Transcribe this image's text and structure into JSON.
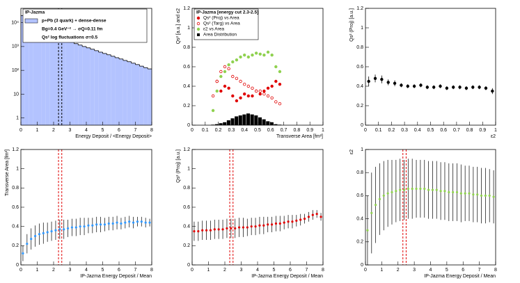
{
  "chart_data": [
    {
      "type": "histogram",
      "log_y": true,
      "xlabel": "Energy Deposit / <Energy Deposit>",
      "legend_title": "IP-Jazma",
      "label": "p+Pb (3 quark) + dense-dense",
      "color": "#b3c3ff",
      "annotations": [
        "Bg=0.4 GeV⁻² → σQ=0.11 fm",
        "Qs² log fluctuations σ=0.5"
      ],
      "bins": [
        0,
        0.25,
        0.5,
        0.75,
        1,
        1.25,
        1.5,
        1.75,
        2,
        2.25,
        2.5,
        2.75,
        3,
        3.25,
        3.5,
        3.75,
        4,
        4.25,
        4.5,
        4.75,
        5,
        5.25,
        5.5,
        5.75,
        6,
        6.25,
        6.5,
        6.75,
        7,
        7.25,
        7.5,
        7.75,
        8
      ],
      "values": [
        20000,
        12000,
        7000,
        5000,
        4470,
        3900,
        3400,
        2970,
        2600,
        2270,
        1980,
        1730,
        1510,
        1320,
        1150,
        1000,
        880,
        770,
        670,
        580,
        510,
        450,
        390,
        340,
        300,
        260,
        230,
        200,
        175,
        150,
        130,
        115
      ],
      "xlim": [
        0,
        8
      ],
      "xticks": [
        0,
        1,
        2,
        3,
        4,
        5,
        6,
        7,
        8
      ],
      "ylim": [
        0.5,
        40000
      ],
      "yticks": [
        1,
        10,
        {
          "value": 100,
          "label": "10²"
        },
        {
          "value": 1000,
          "label": "10³"
        },
        {
          "value": 10000,
          "label": "10⁴"
        }
      ],
      "vlines": [
        2.3,
        2.5
      ],
      "vline_color": "#000"
    },
    {
      "type": "scatter",
      "xlabel": "Transverse Area [fm²]",
      "ylabel": "Qs² [a.u.] and ε2",
      "legend_title": "IP-Jazma [energy cut 2.3-2.5]",
      "x": [
        0.16,
        0.19,
        0.22,
        0.25,
        0.28,
        0.31,
        0.34,
        0.37,
        0.4,
        0.43,
        0.46,
        0.49,
        0.52,
        0.55,
        0.58,
        0.61,
        0.64,
        0.67
      ],
      "series": [
        {
          "name": "Qs² (Proj) vs Area",
          "color": "#e00000",
          "marker": "filled",
          "values": [
            0.9,
            0.45,
            0.35,
            0.4,
            0.38,
            0.3,
            0.25,
            0.28,
            0.32,
            0.3,
            0.3,
            0.35,
            0.32,
            0.35,
            0.38,
            0.4,
            0.45,
            0.42
          ]
        },
        {
          "name": "Qs² (Targ) vs Area",
          "color": "#e00000",
          "marker": "open",
          "values": [
            0.3,
            0.45,
            0.55,
            0.6,
            0.58,
            0.5,
            0.48,
            0.45,
            0.42,
            0.4,
            0.38,
            0.35,
            0.35,
            0.32,
            0.3,
            0.28,
            0.24,
            0.22
          ]
        },
        {
          "name": "ε2 vs Area",
          "color": "#8fd14f",
          "marker": "filled",
          "values": [
            0.15,
            0.35,
            0.5,
            0.55,
            0.62,
            0.65,
            0.67,
            0.7,
            0.72,
            0.7,
            0.72,
            0.74,
            0.73,
            0.72,
            0.75,
            0.72,
            0.6,
            0.55
          ]
        },
        {
          "name": "Area Distribution",
          "color": "#000",
          "marker": "bar",
          "values": [
            0.005,
            0.01,
            0.02,
            0.03,
            0.05,
            0.07,
            0.09,
            0.1,
            0.11,
            0.12,
            0.11,
            0.1,
            0.08,
            0.06,
            0.04,
            0.03,
            0.01,
            0.005
          ]
        }
      ],
      "xlim": [
        0,
        1
      ],
      "xticks": [
        0,
        0.1,
        0.2,
        0.3,
        0.4,
        0.5,
        0.6,
        0.7,
        0.8,
        0.9,
        1
      ],
      "ylim": [
        0,
        1.2
      ],
      "yticks": [
        0,
        0.2,
        0.4,
        0.6,
        0.8,
        1,
        1.2
      ]
    },
    {
      "type": "scatter",
      "xlabel": "ε2",
      "ylabel": "Qs² (Proj) [a.u.]",
      "x": [
        0.025,
        0.075,
        0.125,
        0.175,
        0.225,
        0.275,
        0.325,
        0.375,
        0.425,
        0.475,
        0.525,
        0.575,
        0.625,
        0.675,
        0.725,
        0.775,
        0.825,
        0.875,
        0.925,
        0.975
      ],
      "series": [
        {
          "color": "#000",
          "marker": "filled",
          "values": [
            0.45,
            0.48,
            0.47,
            0.44,
            0.43,
            0.41,
            0.4,
            0.4,
            0.41,
            0.39,
            0.39,
            0.4,
            0.38,
            0.39,
            0.39,
            0.38,
            0.39,
            0.39,
            0.38,
            0.35
          ],
          "errors": [
            0.05,
            0.04,
            0.04,
            0.03,
            0.03,
            0.02,
            0.02,
            0.02,
            0.02,
            0.02,
            0.02,
            0.02,
            0.02,
            0.02,
            0.02,
            0.02,
            0.02,
            0.02,
            0.02,
            0.03
          ]
        }
      ],
      "xlim": [
        0,
        1
      ],
      "xticks": [
        0,
        0.1,
        0.2,
        0.3,
        0.4,
        0.5,
        0.6,
        0.7,
        0.8,
        0.9,
        1
      ],
      "ylim": [
        0,
        1.2
      ],
      "yticks": [
        0,
        0.2,
        0.4,
        0.6,
        0.8,
        1,
        1.2
      ]
    },
    {
      "type": "scatter",
      "xlabel": "IP-Jazma Energy Deposit / Mean",
      "ylabel": "Transverse Area [fm²]",
      "x": [
        0.125,
        0.375,
        0.625,
        0.875,
        1.125,
        1.375,
        1.625,
        1.875,
        2.125,
        2.375,
        2.625,
        2.875,
        3.125,
        3.375,
        3.625,
        3.875,
        4.125,
        4.375,
        4.625,
        4.875,
        5.125,
        5.375,
        5.625,
        5.875,
        6.125,
        6.375,
        6.625,
        6.875,
        7.125,
        7.375,
        7.625,
        7.875
      ],
      "series": [
        {
          "color": "#3399ff",
          "marker": "filled",
          "error_color": "#222",
          "values": [
            0.12,
            0.22,
            0.27,
            0.3,
            0.32,
            0.33,
            0.34,
            0.35,
            0.36,
            0.37,
            0.37,
            0.38,
            0.39,
            0.39,
            0.4,
            0.4,
            0.41,
            0.41,
            0.42,
            0.42,
            0.42,
            0.43,
            0.43,
            0.44,
            0.43,
            0.44,
            0.45,
            0.44,
            0.45,
            0.45,
            0.44,
            0.44
          ],
          "errors": [
            0.08,
            0.1,
            0.11,
            0.11,
            0.11,
            0.11,
            0.1,
            0.1,
            0.1,
            0.1,
            0.1,
            0.09,
            0.09,
            0.09,
            0.09,
            0.09,
            0.08,
            0.08,
            0.08,
            0.08,
            0.07,
            0.07,
            0.07,
            0.07,
            0.06,
            0.06,
            0.06,
            0.06,
            0.05,
            0.05,
            0.05,
            0.04
          ]
        }
      ],
      "xlim": [
        0,
        8
      ],
      "xticks": [
        0,
        1,
        2,
        3,
        4,
        5,
        6,
        7,
        8
      ],
      "ylim": [
        0,
        1.2
      ],
      "yticks": [
        0,
        0.2,
        0.4,
        0.6,
        0.8,
        1,
        1.2
      ],
      "vlines": [
        2.3,
        2.5
      ],
      "vline_color": "#e00000"
    },
    {
      "type": "scatter",
      "xlabel": "IP-Jazma Energy Deposit / Mean",
      "ylabel": "Qs² (Proj) [a.u.]",
      "x": [
        0.125,
        0.375,
        0.625,
        0.875,
        1.125,
        1.375,
        1.625,
        1.875,
        2.125,
        2.375,
        2.625,
        2.875,
        3.125,
        3.375,
        3.625,
        3.875,
        4.125,
        4.375,
        4.625,
        4.875,
        5.125,
        5.375,
        5.625,
        5.875,
        6.125,
        6.375,
        6.625,
        6.875,
        7.125,
        7.375,
        7.625,
        7.875
      ],
      "series": [
        {
          "color": "#e00000",
          "marker": "filled",
          "error_color": "#222",
          "values": [
            0.35,
            0.35,
            0.36,
            0.36,
            0.36,
            0.37,
            0.37,
            0.37,
            0.38,
            0.38,
            0.38,
            0.39,
            0.39,
            0.39,
            0.4,
            0.4,
            0.41,
            0.41,
            0.42,
            0.42,
            0.43,
            0.43,
            0.44,
            0.45,
            0.45,
            0.46,
            0.47,
            0.48,
            0.5,
            0.52,
            0.53,
            0.5
          ],
          "errors": [
            0.1,
            0.1,
            0.1,
            0.1,
            0.1,
            0.1,
            0.1,
            0.1,
            0.1,
            0.1,
            0.1,
            0.1,
            0.1,
            0.09,
            0.09,
            0.09,
            0.09,
            0.09,
            0.08,
            0.08,
            0.08,
            0.08,
            0.07,
            0.07,
            0.07,
            0.06,
            0.06,
            0.05,
            0.05,
            0.05,
            0.04,
            0.04
          ]
        }
      ],
      "xlim": [
        0,
        8
      ],
      "xticks": [
        0,
        1,
        2,
        3,
        4,
        5,
        6,
        7,
        8
      ],
      "ylim": [
        0,
        1.2
      ],
      "yticks": [
        0,
        0.2,
        0.4,
        0.6,
        0.8,
        1,
        1.2
      ],
      "vlines": [
        2.3,
        2.5
      ],
      "vline_color": "#e00000"
    },
    {
      "type": "scatter",
      "xlabel": "IP-Jazma Energy Deposit / Mean",
      "ylabel": "ε2",
      "x": [
        0.125,
        0.375,
        0.625,
        0.875,
        1.125,
        1.375,
        1.625,
        1.875,
        2.125,
        2.375,
        2.625,
        2.875,
        3.125,
        3.375,
        3.625,
        3.875,
        4.125,
        4.375,
        4.625,
        4.875,
        5.125,
        5.375,
        5.625,
        5.875,
        6.125,
        6.375,
        6.625,
        6.875,
        7.125,
        7.375,
        7.625,
        7.875
      ],
      "series": [
        {
          "color": "#8fd14f",
          "marker": "filled",
          "error_color": "#222",
          "values": [
            0.3,
            0.45,
            0.52,
            0.57,
            0.6,
            0.62,
            0.63,
            0.64,
            0.65,
            0.65,
            0.66,
            0.66,
            0.66,
            0.66,
            0.66,
            0.65,
            0.65,
            0.65,
            0.64,
            0.64,
            0.63,
            0.63,
            0.63,
            0.62,
            0.62,
            0.62,
            0.61,
            0.61,
            0.6,
            0.6,
            0.6,
            0.59
          ],
          "errors": [
            0.3,
            0.35,
            0.33,
            0.31,
            0.3,
            0.29,
            0.28,
            0.27,
            0.27,
            0.26,
            0.26,
            0.26,
            0.25,
            0.25,
            0.25,
            0.25,
            0.25,
            0.25,
            0.25,
            0.25,
            0.25,
            0.25,
            0.25,
            0.25,
            0.24,
            0.24,
            0.24,
            0.24,
            0.24,
            0.24,
            0.23,
            0.23
          ]
        }
      ],
      "xlim": [
        0,
        8
      ],
      "xticks": [
        0,
        1,
        2,
        3,
        4,
        5,
        6,
        7,
        8
      ],
      "ylim": [
        0,
        1
      ],
      "yticks": [
        0,
        0.2,
        0.4,
        0.6,
        0.8,
        1
      ],
      "vlines": [
        2.3,
        2.5
      ],
      "vline_color": "#e00000"
    }
  ]
}
